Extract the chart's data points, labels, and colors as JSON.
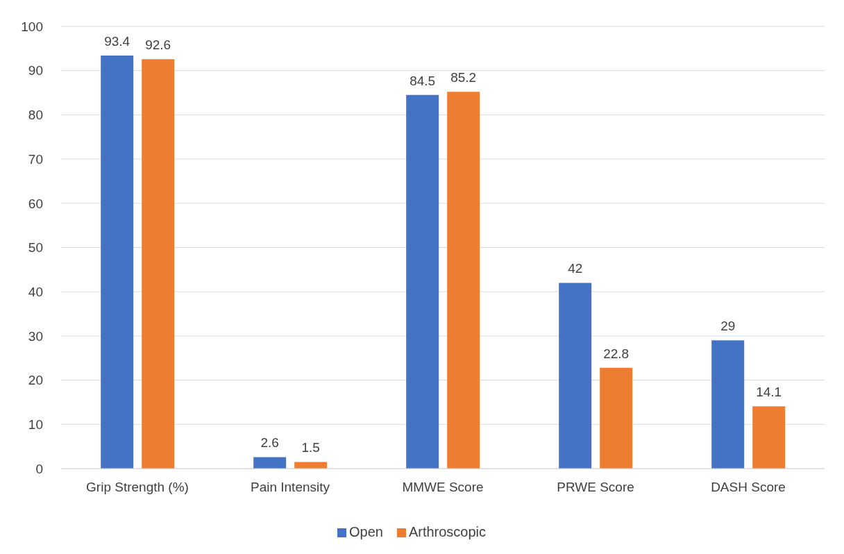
{
  "chart_data": {
    "type": "bar",
    "categories": [
      "Grip Strength (%)",
      "Pain Intensity",
      "MMWE Score",
      "PRWE Score",
      "DASH Score"
    ],
    "series": [
      {
        "name": "Open",
        "color": "#4472c4",
        "values": [
          93.4,
          2.6,
          84.5,
          42,
          29
        ]
      },
      {
        "name": "Arthroscopic",
        "color": "#ed7d31",
        "values": [
          92.6,
          1.5,
          85.2,
          22.8,
          14.1
        ]
      }
    ],
    "ylim": [
      0,
      100
    ],
    "yticks": [
      0,
      10,
      20,
      30,
      40,
      50,
      60,
      70,
      80,
      90,
      100
    ],
    "grid": "y",
    "legend": "bottom",
    "data_labels": true
  }
}
